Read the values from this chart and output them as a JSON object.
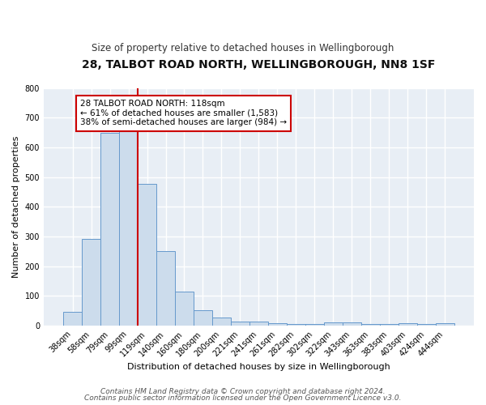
{
  "title": "28, TALBOT ROAD NORTH, WELLINGBOROUGH, NN8 1SF",
  "subtitle": "Size of property relative to detached houses in Wellingborough",
  "xlabel": "Distribution of detached houses by size in Wellingborough",
  "ylabel": "Number of detached properties",
  "bar_labels": [
    "38sqm",
    "58sqm",
    "79sqm",
    "99sqm",
    "119sqm",
    "140sqm",
    "160sqm",
    "180sqm",
    "200sqm",
    "221sqm",
    "241sqm",
    "261sqm",
    "282sqm",
    "302sqm",
    "322sqm",
    "343sqm",
    "363sqm",
    "383sqm",
    "403sqm",
    "424sqm",
    "444sqm"
  ],
  "bar_values": [
    48,
    293,
    648,
    660,
    478,
    251,
    114,
    52,
    29,
    15,
    14,
    8,
    5,
    5,
    10,
    10,
    5,
    5,
    8,
    5,
    8
  ],
  "bar_color": "#ccdcec",
  "bar_edge_color": "#6699cc",
  "vline_x_idx": 3,
  "vline_color": "#cc0000",
  "annotation_line1": "28 TALBOT ROAD NORTH: 118sqm",
  "annotation_line2": "← 61% of detached houses are smaller (1,583)",
  "annotation_line3": "38% of semi-detached houses are larger (984) →",
  "annotation_box_color": "#ffffff",
  "annotation_box_edge_color": "#cc0000",
  "ylim": [
    0,
    800
  ],
  "yticks": [
    0,
    100,
    200,
    300,
    400,
    500,
    600,
    700,
    800
  ],
  "bg_color": "#e8eef5",
  "grid_color": "#ffffff",
  "fig_bg_color": "#ffffff",
  "title_fontsize": 10,
  "subtitle_fontsize": 8.5,
  "axis_label_fontsize": 8,
  "tick_fontsize": 7,
  "annotation_fontsize": 7.5,
  "footer_fontsize": 6.5,
  "footer_line1": "Contains HM Land Registry data © Crown copyright and database right 2024.",
  "footer_line2": "Contains public sector information licensed under the Open Government Licence v3.0."
}
